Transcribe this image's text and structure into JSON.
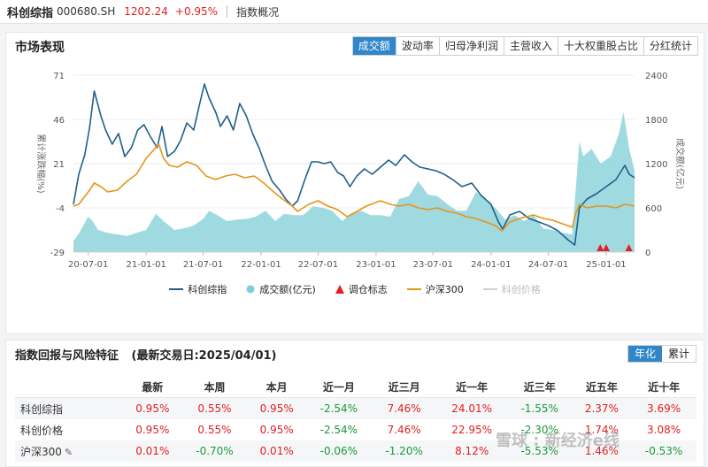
{
  "header": {
    "name": "科创综指",
    "code": "000680.SH",
    "price": "1202.24",
    "change": "+0.95%",
    "tab": "指数概况"
  },
  "market": {
    "title": "市场表现",
    "tabs": [
      "成交额",
      "波动率",
      "归母净利润",
      "主营收入",
      "十大权重股占比",
      "分红统计"
    ],
    "active_tab": 0
  },
  "chart_data": {
    "type": "line",
    "xlabel": "",
    "ylabel": "累计涨跌幅(%)",
    "y2label": "成交额(亿元)",
    "ylim": [
      -29,
      71
    ],
    "yticks": [
      71,
      46,
      21,
      -4,
      -29
    ],
    "y2lim": [
      0,
      2400
    ],
    "y2ticks": [
      2400,
      1800,
      1200,
      600,
      0
    ],
    "xlim": [
      "2020-05-15",
      "2025-04-01"
    ],
    "xticks": [
      "20-07-01",
      "21-01-01",
      "21-07-01",
      "22-01-01",
      "22-07-01",
      "23-01-01",
      "23-07-01",
      "24-01-01",
      "24-07-01",
      "25-01-01"
    ],
    "grid": true,
    "legend_position": "bottom",
    "series": [
      {
        "name": "科创综指",
        "color": "#1f5f8b",
        "axis": "left",
        "x": [
          "2020-05-15",
          "2020-06-01",
          "2020-06-20",
          "2020-07-05",
          "2020-07-20",
          "2020-08-10",
          "2020-08-25",
          "2020-09-15",
          "2020-10-05",
          "2020-10-25",
          "2020-11-15",
          "2020-12-05",
          "2020-12-25",
          "2021-01-15",
          "2021-02-05",
          "2021-02-20",
          "2021-03-10",
          "2021-04-01",
          "2021-04-20",
          "2021-05-10",
          "2021-06-01",
          "2021-06-20",
          "2021-07-05",
          "2021-07-20",
          "2021-08-10",
          "2021-08-25",
          "2021-09-15",
          "2021-10-05",
          "2021-10-25",
          "2021-11-15",
          "2021-12-05",
          "2021-12-25",
          "2022-01-15",
          "2022-02-05",
          "2022-03-01",
          "2022-03-20",
          "2022-04-10",
          "2022-04-27",
          "2022-05-20",
          "2022-06-10",
          "2022-07-01",
          "2022-07-20",
          "2022-08-10",
          "2022-09-01",
          "2022-09-20",
          "2022-10-10",
          "2022-11-01",
          "2022-11-25",
          "2022-12-20",
          "2023-01-15",
          "2023-02-10",
          "2023-03-05",
          "2023-04-01",
          "2023-04-25",
          "2023-05-20",
          "2023-06-15",
          "2023-07-10",
          "2023-08-05",
          "2023-09-01",
          "2023-10-01",
          "2023-11-01",
          "2023-12-01",
          "2024-01-01",
          "2024-01-25",
          "2024-02-07",
          "2024-03-01",
          "2024-04-01",
          "2024-05-01",
          "2024-06-01",
          "2024-07-01",
          "2024-08-01",
          "2024-09-01",
          "2024-09-23",
          "2024-10-08",
          "2024-11-01",
          "2024-12-01",
          "2025-01-01",
          "2025-02-01",
          "2025-03-01",
          "2025-03-15",
          "2025-04-01"
        ],
        "values": [
          -2,
          15,
          26,
          41,
          62,
          48,
          40,
          32,
          38,
          25,
          30,
          40,
          43,
          36,
          30,
          42,
          25,
          28,
          34,
          44,
          40,
          55,
          66,
          58,
          50,
          42,
          48,
          40,
          55,
          48,
          38,
          30,
          20,
          11,
          6,
          1,
          -3,
          0,
          12,
          22,
          22,
          21,
          22,
          16,
          14,
          8,
          14,
          18,
          15,
          19,
          23,
          20,
          26,
          22,
          19,
          18,
          17,
          15,
          12,
          8,
          10,
          3,
          -2,
          -12,
          -16,
          -8,
          -6,
          -10,
          -12,
          -14,
          -17,
          -22,
          -25,
          -4,
          1,
          4,
          8,
          12,
          20,
          15,
          13
        ]
      },
      {
        "name": "沪深300",
        "color": "#e6941a",
        "axis": "left",
        "x": [
          "2020-05-15",
          "2020-06-01",
          "2020-07-01",
          "2020-07-20",
          "2020-08-10",
          "2020-09-01",
          "2020-10-01",
          "2020-11-01",
          "2020-12-01",
          "2021-01-01",
          "2021-02-10",
          "2021-02-25",
          "2021-03-15",
          "2021-04-10",
          "2021-05-10",
          "2021-06-10",
          "2021-07-10",
          "2021-08-10",
          "2021-09-10",
          "2021-10-10",
          "2021-11-10",
          "2021-12-10",
          "2022-01-10",
          "2022-02-10",
          "2022-03-10",
          "2022-04-10",
          "2022-04-27",
          "2022-06-01",
          "2022-07-01",
          "2022-08-01",
          "2022-09-01",
          "2022-10-01",
          "2022-11-01",
          "2022-12-01",
          "2023-01-15",
          "2023-02-15",
          "2023-03-15",
          "2023-04-15",
          "2023-05-15",
          "2023-06-15",
          "2023-07-15",
          "2023-08-15",
          "2023-09-15",
          "2023-10-15",
          "2023-11-15",
          "2023-12-15",
          "2024-01-15",
          "2024-02-05",
          "2024-03-01",
          "2024-04-01",
          "2024-05-15",
          "2024-06-15",
          "2024-07-15",
          "2024-08-15",
          "2024-09-15",
          "2024-09-25",
          "2024-10-08",
          "2024-11-01",
          "2024-12-01",
          "2025-01-01",
          "2025-02-01",
          "2025-03-01",
          "2025-04-01"
        ],
        "values": [
          -3,
          -2,
          5,
          10,
          8,
          5,
          6,
          11,
          15,
          24,
          32,
          24,
          20,
          19,
          22,
          20,
          14,
          12,
          14,
          15,
          13,
          14,
          10,
          5,
          1,
          -3,
          -6,
          -2,
          0,
          -3,
          -5,
          -9,
          -6,
          -3,
          0,
          -2,
          -3,
          -2,
          -4,
          -5,
          -4,
          -6,
          -7,
          -9,
          -10,
          -12,
          -14,
          -17,
          -12,
          -10,
          -8,
          -10,
          -11,
          -13,
          -15,
          -8,
          -2,
          -4,
          -3,
          -3,
          -4,
          -2,
          -3
        ]
      },
      {
        "name": "成交额(亿元)",
        "color": "#8fd3dc",
        "axis": "right",
        "type": "area",
        "x": [
          "2020-05-15",
          "2020-06-01",
          "2020-07-01",
          "2020-07-15",
          "2020-08-01",
          "2020-09-01",
          "2020-10-01",
          "2020-11-01",
          "2020-12-01",
          "2021-01-01",
          "2021-02-01",
          "2021-02-25",
          "2021-04-01",
          "2021-05-01",
          "2021-06-01",
          "2021-07-01",
          "2021-07-20",
          "2021-08-15",
          "2021-09-15",
          "2021-10-15",
          "2021-11-15",
          "2021-12-15",
          "2022-01-15",
          "2022-02-15",
          "2022-03-15",
          "2022-04-15",
          "2022-05-15",
          "2022-06-15",
          "2022-07-15",
          "2022-08-15",
          "2022-09-15",
          "2022-10-15",
          "2022-11-15",
          "2022-12-15",
          "2023-01-15",
          "2023-02-15",
          "2023-03-15",
          "2023-04-15",
          "2023-05-15",
          "2023-06-15",
          "2023-07-15",
          "2023-08-15",
          "2023-09-15",
          "2023-10-15",
          "2023-11-15",
          "2023-12-15",
          "2024-01-15",
          "2024-02-15",
          "2024-03-15",
          "2024-04-15",
          "2024-05-15",
          "2024-06-15",
          "2024-07-15",
          "2024-08-15",
          "2024-09-15",
          "2024-10-08",
          "2024-10-20",
          "2024-11-15",
          "2024-12-15",
          "2025-01-15",
          "2025-02-10",
          "2025-02-25",
          "2025-03-15",
          "2025-04-01"
        ],
        "values": [
          150,
          250,
          480,
          420,
          300,
          260,
          240,
          220,
          260,
          300,
          520,
          420,
          300,
          320,
          360,
          450,
          560,
          500,
          420,
          440,
          450,
          480,
          560,
          420,
          520,
          500,
          500,
          620,
          600,
          560,
          420,
          520,
          560,
          500,
          500,
          480,
          720,
          760,
          960,
          780,
          760,
          650,
          560,
          560,
          820,
          700,
          600,
          440,
          500,
          420,
          500,
          320,
          300,
          260,
          240,
          1500,
          1300,
          1400,
          1200,
          1300,
          1600,
          1900,
          1400,
          1100
        ]
      }
    ],
    "markers": {
      "name": "调仓标志",
      "color": "#e02020",
      "x": [
        "2024-12-13",
        "2025-01-01",
        "2025-03-14"
      ]
    },
    "extra_legend": {
      "name": "科创价格",
      "color": "#d0d0d0"
    }
  },
  "legend": [
    "科创综指",
    "成交额(亿元)",
    "调仓标志",
    "沪深300",
    "科创价格"
  ],
  "returns": {
    "title": "指数回报与风险特征",
    "subtitle": "(最新交易日:2025/04/01)",
    "modes": [
      "年化",
      "累计"
    ],
    "columns": [
      "",
      "最新",
      "本周",
      "本月",
      "近一月",
      "近三月",
      "近一年",
      "近三年",
      "近五年",
      "近十年"
    ],
    "rows": [
      {
        "name": "科创综指",
        "values": [
          "0.95%",
          "0.55%",
          "0.95%",
          "-2.54%",
          "7.46%",
          "24.01%",
          "-1.55%",
          "2.37%",
          "3.69%"
        ]
      },
      {
        "name": "科创价格",
        "values": [
          "0.95%",
          "0.55%",
          "0.95%",
          "-2.54%",
          "7.46%",
          "22.95%",
          "-2.30%",
          "1.74%",
          "3.08%"
        ]
      },
      {
        "name": "沪深300",
        "values": [
          "0.01%",
          "-0.70%",
          "0.01%",
          "-0.06%",
          "-1.20%",
          "8.12%",
          "-5.53%",
          "1.46%",
          "-0.53%"
        ]
      }
    ]
  },
  "watermark": "雪球 : 新经济e线"
}
